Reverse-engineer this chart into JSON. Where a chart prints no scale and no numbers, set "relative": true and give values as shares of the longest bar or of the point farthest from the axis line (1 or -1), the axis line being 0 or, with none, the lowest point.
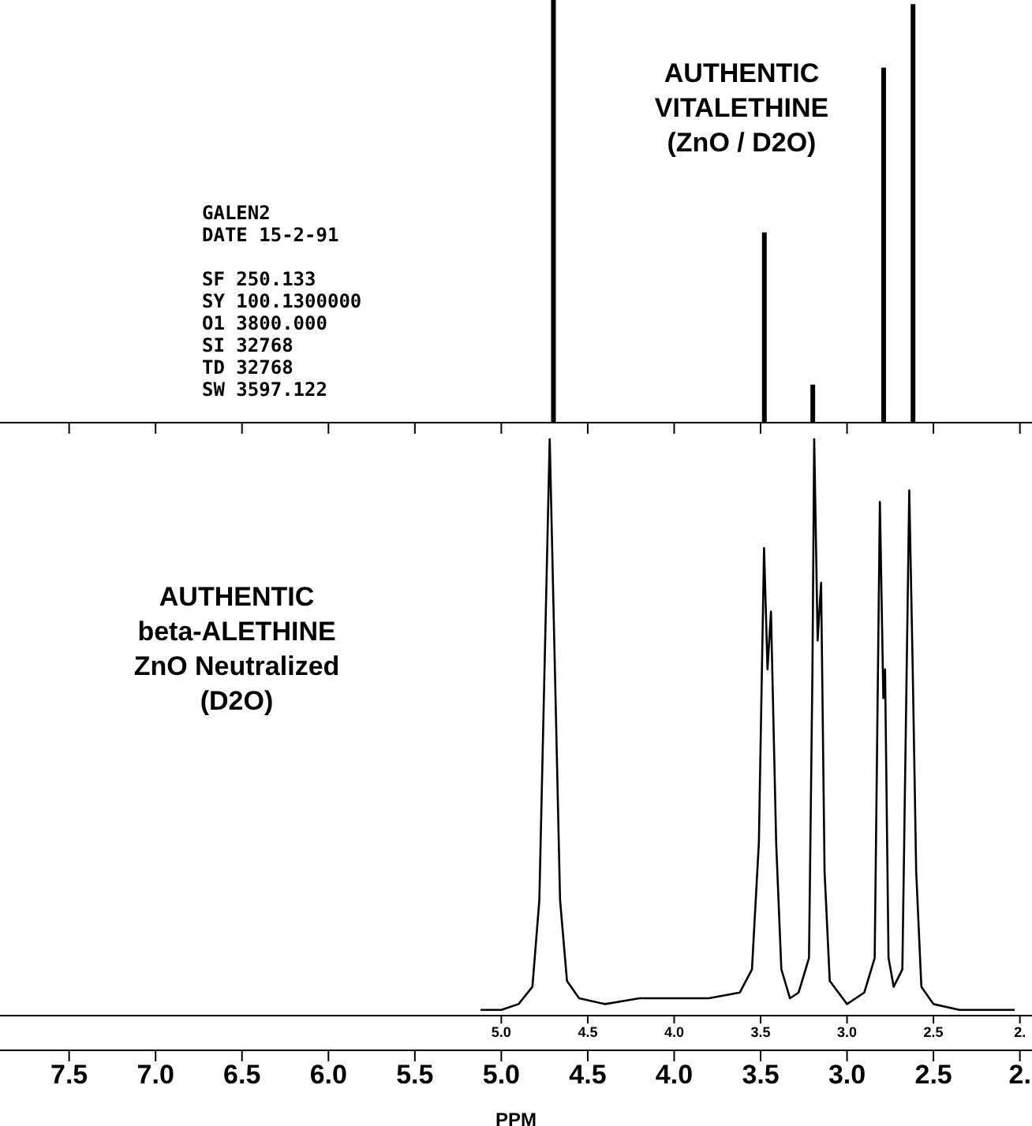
{
  "chart_data": [
    {
      "type": "bar",
      "title": "AUTHENTIC\nVITALETHINE\n(ZnO / D2O)",
      "relative": true,
      "tick_labels": false,
      "xlim": [
        7.9,
        1.93
      ],
      "xticks": [
        7.5,
        7,
        6.5,
        6,
        5.5,
        5,
        4.5,
        4,
        3.5,
        3,
        2.5,
        2
      ],
      "x": [
        4.7,
        3.48,
        3.2,
        2.79,
        2.62
      ],
      "series": [
        {
          "color": "#000000",
          "values": [
            1,
            0.45,
            0.09,
            0.84,
            0.99
          ]
        }
      ],
      "annotations": [
        "GALEN2",
        "DATE 15-2-91",
        "SF 250.133",
        "SY 100.1300000",
        "O1 3800.000",
        "SI 32768",
        "TD 32768",
        "SW 3597.122"
      ]
    },
    {
      "type": "line",
      "title": "AUTHENTIC\nbeta-ALETHINE\nZnO Neutralized\n(D2O)",
      "relative": true,
      "marker": "none",
      "line_style": "solid",
      "xlabel": "PPM",
      "xlim": [
        7.9,
        1.93
      ],
      "xticks": [
        {
          "value": 7.5,
          "label": "7.5"
        },
        {
          "value": 7.0,
          "label": "7.0"
        },
        {
          "value": 6.5,
          "label": "6.5"
        },
        {
          "value": 6.0,
          "label": "6.0"
        },
        {
          "value": 5.5,
          "label": "5.5"
        },
        {
          "value": 5.0,
          "label": "5.0"
        },
        {
          "value": 4.5,
          "label": "4.5"
        },
        {
          "value": 4.0,
          "label": "4.0"
        },
        {
          "value": 3.5,
          "label": "3.5"
        },
        {
          "value": 3.0,
          "label": "3.0"
        },
        {
          "value": 2.5,
          "label": "2.5"
        },
        {
          "value": 2.0,
          "label": "2."
        }
      ],
      "x2lim": [
        7.9,
        1.93
      ],
      "x2ticks": [
        {
          "value": 5.0,
          "label": "5.0"
        },
        {
          "value": 4.5,
          "label": "4.5"
        },
        {
          "value": 4.0,
          "label": "4.0"
        },
        {
          "value": 3.5,
          "label": "3.5"
        },
        {
          "value": 3.0,
          "label": "3.0"
        },
        {
          "value": 2.5,
          "label": "2.5"
        },
        {
          "value": 2.0,
          "label": "2."
        }
      ],
      "x": [
        5.12,
        5.0,
        4.9,
        4.82,
        4.78,
        4.75,
        4.72,
        4.69,
        4.66,
        4.62,
        4.55,
        4.4,
        4.2,
        4.0,
        3.8,
        3.62,
        3.55,
        3.51,
        3.48,
        3.46,
        3.44,
        3.41,
        3.38,
        3.33,
        3.28,
        3.22,
        3.2,
        3.19,
        3.17,
        3.15,
        3.13,
        3.1,
        3.0,
        2.9,
        2.84,
        2.81,
        2.79,
        2.78,
        2.76,
        2.73,
        2.68,
        2.64,
        2.62,
        2.6,
        2.57,
        2.5,
        2.35,
        2.1,
        2.03
      ],
      "series": [
        {
          "color": "#000000",
          "values": [
            0.01,
            0.01,
            0.02,
            0.05,
            0.2,
            0.6,
            1.0,
            0.6,
            0.2,
            0.06,
            0.03,
            0.02,
            0.03,
            0.03,
            0.03,
            0.04,
            0.08,
            0.3,
            0.81,
            0.6,
            0.7,
            0.3,
            0.08,
            0.03,
            0.04,
            0.1,
            0.6,
            1.0,
            0.65,
            0.75,
            0.25,
            0.06,
            0.02,
            0.04,
            0.1,
            0.89,
            0.55,
            0.6,
            0.1,
            0.05,
            0.08,
            0.91,
            0.6,
            0.25,
            0.05,
            0.02,
            0.01,
            0.01,
            0.01
          ]
        }
      ]
    }
  ]
}
